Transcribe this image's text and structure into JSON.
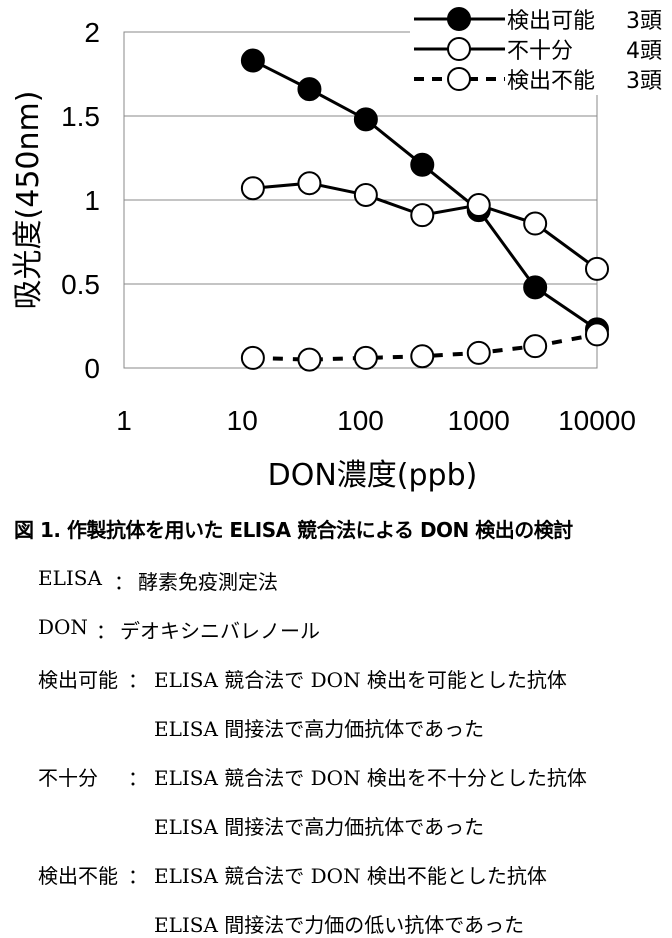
{
  "chart_data": {
    "type": "line",
    "xlabel": "DON濃度(ppb)",
    "ylabel": "吸光度(450nm)",
    "xscale": "log",
    "xlim": [
      1,
      10000
    ],
    "ylim": [
      0,
      2
    ],
    "x_ticks": [
      1,
      10,
      100,
      1000,
      10000
    ],
    "x_tick_labels": [
      "1",
      "10",
      "100",
      "1000",
      "10000"
    ],
    "y_ticks": [
      0,
      0.5,
      1,
      1.5,
      2
    ],
    "y_tick_labels": [
      "0",
      "0.5",
      "1",
      "1.5",
      "2"
    ],
    "grid": "horizontal",
    "legend_position": "top-right",
    "x": [
      12.3,
      37,
      111,
      333,
      1000,
      3000,
      10000
    ],
    "series": [
      {
        "name": "検出可能",
        "count": "3頭",
        "marker": "filled-circle",
        "line": "solid",
        "values": [
          1.83,
          1.66,
          1.48,
          1.21,
          0.94,
          0.48,
          0.23
        ]
      },
      {
        "name": "不十分",
        "count": "4頭",
        "marker": "open-circle",
        "line": "solid",
        "values": [
          1.07,
          1.1,
          1.03,
          0.91,
          0.97,
          0.86,
          0.59
        ]
      },
      {
        "name": "検出不能",
        "count": "3頭",
        "marker": "open-circle",
        "line": "dashed",
        "values": [
          0.06,
          0.05,
          0.06,
          0.07,
          0.09,
          0.13,
          0.2
        ]
      }
    ]
  },
  "caption": "図 1.  作製抗体を用いた ELISA 競合法による DON 検出の検討",
  "notes": [
    {
      "term": "ELISA",
      "desc": "酵素免疫測定法"
    },
    {
      "term": "DON",
      "desc": "デオキシニバレノール"
    },
    {
      "term": "検出可能",
      "desc": "ELISA 競合法で DON 検出を可能とした抗体"
    },
    {
      "term": "",
      "desc": "ELISA 間接法で高力価抗体であった"
    },
    {
      "term": "不十分",
      "desc": "ELISA 競合法で DON 検出を不十分とした抗体"
    },
    {
      "term": "",
      "desc": "ELISA 間接法で高力価抗体であった"
    },
    {
      "term": "検出不能",
      "desc": "ELISA 競合法で DON 検出不能とした抗体"
    },
    {
      "term": "",
      "desc": "ELISA 間接法で力価の低い抗体であった"
    }
  ],
  "colors": {
    "ink": "#000000",
    "grid": "#888888",
    "background": "#ffffff"
  }
}
